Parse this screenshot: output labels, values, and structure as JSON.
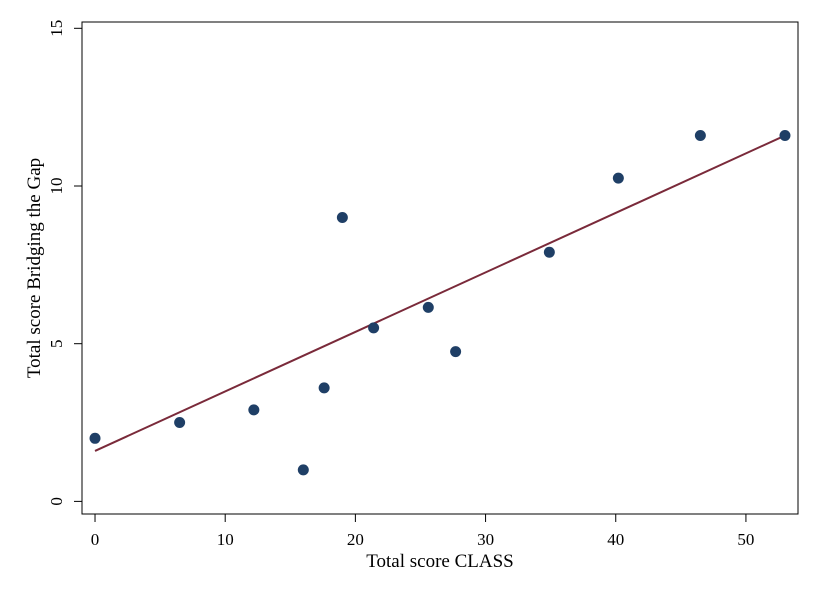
{
  "chart_data": {
    "type": "scatter",
    "title": "",
    "xlabel": "Total score CLASS",
    "ylabel": "Total score Bridging the Gap",
    "xlim": [
      -1,
      54
    ],
    "ylim": [
      -0.4,
      15.2
    ],
    "xticks": [
      0,
      10,
      20,
      30,
      40,
      50
    ],
    "yticks": [
      0,
      5,
      10,
      15
    ],
    "xtick_labels": [
      "0",
      "10",
      "20",
      "30",
      "40",
      "50"
    ],
    "ytick_labels": [
      "0",
      "5",
      "10",
      "15"
    ],
    "grid": false,
    "legend": "none",
    "series": [
      {
        "type": "scatter",
        "color": "#1f3f66",
        "points": [
          {
            "x": 0,
            "y": 2
          },
          {
            "x": 6.5,
            "y": 2.5
          },
          {
            "x": 12.2,
            "y": 2.9
          },
          {
            "x": 16,
            "y": 1
          },
          {
            "x": 17.6,
            "y": 3.6
          },
          {
            "x": 19,
            "y": 9
          },
          {
            "x": 21.4,
            "y": 5.5
          },
          {
            "x": 25.6,
            "y": 6.15
          },
          {
            "x": 27.7,
            "y": 4.75
          },
          {
            "x": 34.9,
            "y": 7.9
          },
          {
            "x": 40.2,
            "y": 10.25
          },
          {
            "x": 46.5,
            "y": 11.6
          },
          {
            "x": 53,
            "y": 11.6
          }
        ]
      },
      {
        "type": "line",
        "color": "#7a2a3a",
        "points": [
          {
            "x": 0,
            "y": 1.6
          },
          {
            "x": 53,
            "y": 11.6
          }
        ]
      }
    ]
  }
}
